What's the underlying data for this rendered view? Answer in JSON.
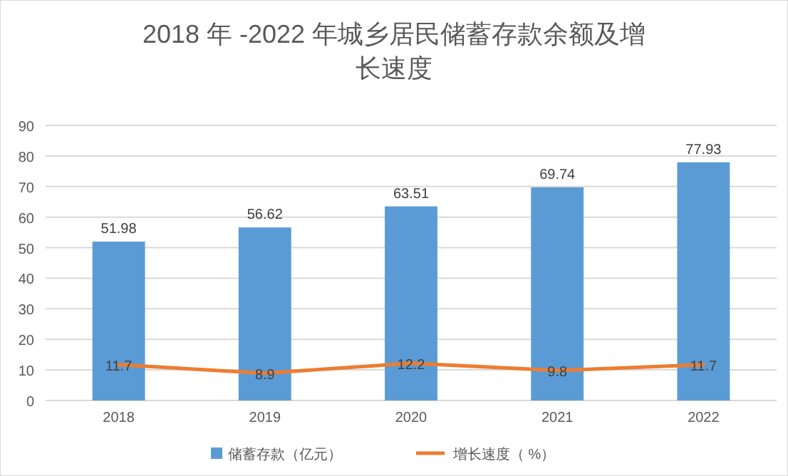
{
  "chart_data": {
    "type": "bar",
    "title": "2018 年 -2022 年城乡居民储蓄存款余额及增长速度",
    "categories": [
      "2018",
      "2019",
      "2020",
      "2021",
      "2022"
    ],
    "series": [
      {
        "name": "储蓄存款（亿元）",
        "color": "#5b9bd5",
        "values": [
          51.98,
          56.62,
          63.51,
          69.74,
          77.93
        ]
      },
      {
        "name": "增长速度（ %）",
        "type": "line",
        "color": "#ed7d31",
        "values": [
          11.7,
          8.9,
          12.2,
          9.8,
          11.7
        ]
      }
    ],
    "ylim": [
      0,
      90
    ],
    "yticks": [
      0,
      10,
      20,
      30,
      40,
      50,
      60,
      70,
      80,
      90
    ],
    "grid": "y",
    "legend": "bottom",
    "data_labels": true,
    "marker": "none",
    "line_style": "solid"
  }
}
